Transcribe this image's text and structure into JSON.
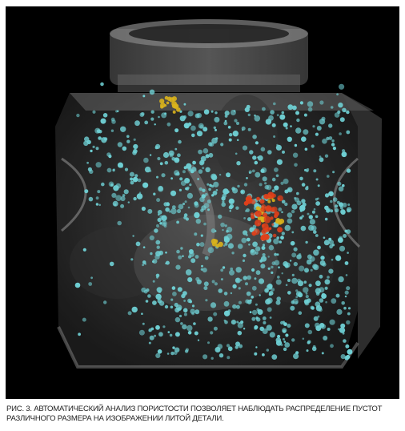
{
  "figure": {
    "caption": "РИС. 3. АВТОМАТИЧЕСКИЙ АНАЛИЗ ПОРИСТОСТИ ПОЗВОЛЯЕТ НАБЛЮДАТЬ РАСПРЕДЕЛЕНИЕ ПУСТОТ РАЗЛИЧНОГО РАЗМЕРА НА ИЗОБРАЖЕНИИ ЛИТОЙ ДЕТАЛИ.",
    "background_color": "#000000",
    "part_color": "#8a8a8a",
    "pore_colors": {
      "small": "#6fd0d4",
      "medium": "#d9b21c",
      "large": "#e0401a"
    }
  }
}
